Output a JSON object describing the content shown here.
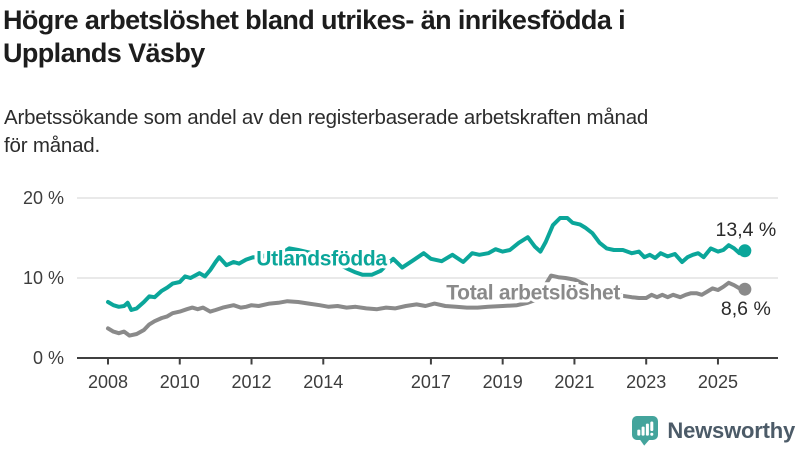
{
  "header": {
    "title_lines": [
      "Högre arbetslöshet bland utrikes- än inrikesfödda i",
      "Upplands Väsby"
    ],
    "subtitle_lines": [
      "Arbetssökande som andel av den registerbaserade arbetskraften månad",
      "för månad."
    ]
  },
  "branding": {
    "logo_text": "Newsworthy",
    "icon": "newsworthy-speech-bubble-bar-chart-icon",
    "icon_color": "#44a49c",
    "text_color": "#4c5b68"
  },
  "colors": {
    "title": "#1d1d1d",
    "subtitle": "#2c2c2c",
    "axis_line": "#404040",
    "axis_text": "#3d3d3d",
    "gridline": "#dcdcdc",
    "end_label": "#2a2a2a",
    "background": "#ffffff"
  },
  "chart_data": {
    "type": "line",
    "title": "Högre arbetslöshet bland utrikes- än inrikesfödda i Upplands Väsby",
    "subtitle": "Arbetssökande som andel av den registerbaserade arbetskraften månad för månad.",
    "xlabel": "",
    "ylabel": "",
    "grid": "horizontal",
    "legend_position": "inline-labels",
    "x_axis": {
      "range": [
        2008,
        2025.75
      ],
      "ticks": [
        2008,
        2010,
        2012,
        2014,
        2017,
        2019,
        2021,
        2023,
        2025
      ],
      "tick_labels": [
        "2008",
        "2010",
        "2012",
        "2014",
        "2017",
        "2019",
        "2021",
        "2023",
        "2025"
      ]
    },
    "y_axis": {
      "range": [
        0,
        21.6
      ],
      "ticks": [
        0,
        10,
        20
      ],
      "tick_labels": [
        "0 %",
        "10 %",
        "20 %"
      ]
    },
    "series": [
      {
        "name": "Utlandsfödda",
        "color": "#0ba69a",
        "end_value": 13.4,
        "end_label": "13,4 %",
        "end_label_side": "above",
        "label_pos": [
          2013.95,
          12.4
        ],
        "points": [
          [
            2008.0,
            7.0
          ],
          [
            2008.15,
            6.6
          ],
          [
            2008.3,
            6.4
          ],
          [
            2008.45,
            6.5
          ],
          [
            2008.55,
            6.9
          ],
          [
            2008.65,
            6.0
          ],
          [
            2008.8,
            6.2
          ],
          [
            2009.0,
            7.0
          ],
          [
            2009.15,
            7.7
          ],
          [
            2009.3,
            7.6
          ],
          [
            2009.5,
            8.4
          ],
          [
            2009.65,
            8.8
          ],
          [
            2009.8,
            9.3
          ],
          [
            2010.0,
            9.5
          ],
          [
            2010.15,
            10.2
          ],
          [
            2010.3,
            10.0
          ],
          [
            2010.55,
            10.6
          ],
          [
            2010.7,
            10.2
          ],
          [
            2010.85,
            11.0
          ],
          [
            2011.0,
            12.0
          ],
          [
            2011.1,
            12.6
          ],
          [
            2011.3,
            11.6
          ],
          [
            2011.5,
            12.0
          ],
          [
            2011.65,
            11.8
          ],
          [
            2011.85,
            12.3
          ],
          [
            2012.05,
            12.6
          ],
          [
            2012.25,
            12.5
          ],
          [
            2012.4,
            12.9
          ],
          [
            2012.55,
            12.5
          ],
          [
            2012.7,
            12.6
          ],
          [
            2012.85,
            13.1
          ],
          [
            2013.05,
            13.7
          ],
          [
            2013.3,
            13.5
          ],
          [
            2013.6,
            13.2
          ],
          [
            2013.9,
            12.8
          ],
          [
            2014.2,
            12.3
          ],
          [
            2014.45,
            11.7
          ],
          [
            2014.7,
            11.1
          ],
          [
            2014.9,
            10.7
          ],
          [
            2015.1,
            10.4
          ],
          [
            2015.35,
            10.4
          ],
          [
            2015.6,
            10.9
          ],
          [
            2015.8,
            11.8
          ],
          [
            2015.95,
            12.4
          ],
          [
            2016.2,
            11.3
          ],
          [
            2016.5,
            12.2
          ],
          [
            2016.8,
            13.1
          ],
          [
            2017.0,
            12.4
          ],
          [
            2017.3,
            12.1
          ],
          [
            2017.6,
            12.9
          ],
          [
            2017.9,
            12.0
          ],
          [
            2018.15,
            13.1
          ],
          [
            2018.35,
            12.9
          ],
          [
            2018.6,
            13.1
          ],
          [
            2018.8,
            13.6
          ],
          [
            2019.0,
            13.3
          ],
          [
            2019.2,
            13.5
          ],
          [
            2019.45,
            14.4
          ],
          [
            2019.7,
            15.1
          ],
          [
            2019.9,
            13.9
          ],
          [
            2020.05,
            13.3
          ],
          [
            2020.2,
            14.5
          ],
          [
            2020.4,
            16.6
          ],
          [
            2020.6,
            17.5
          ],
          [
            2020.8,
            17.5
          ],
          [
            2020.95,
            16.9
          ],
          [
            2021.15,
            16.7
          ],
          [
            2021.3,
            16.3
          ],
          [
            2021.5,
            15.6
          ],
          [
            2021.7,
            14.4
          ],
          [
            2021.9,
            13.7
          ],
          [
            2022.1,
            13.5
          ],
          [
            2022.35,
            13.5
          ],
          [
            2022.6,
            13.1
          ],
          [
            2022.8,
            13.3
          ],
          [
            2022.95,
            12.6
          ],
          [
            2023.1,
            12.9
          ],
          [
            2023.25,
            12.5
          ],
          [
            2023.4,
            13.1
          ],
          [
            2023.6,
            12.7
          ],
          [
            2023.8,
            13.0
          ],
          [
            2024.0,
            12.0
          ],
          [
            2024.15,
            12.6
          ],
          [
            2024.3,
            12.9
          ],
          [
            2024.45,
            13.1
          ],
          [
            2024.6,
            12.6
          ],
          [
            2024.8,
            13.7
          ],
          [
            2025.0,
            13.3
          ],
          [
            2025.15,
            13.5
          ],
          [
            2025.3,
            14.1
          ],
          [
            2025.45,
            13.7
          ],
          [
            2025.6,
            13.1
          ],
          [
            2025.75,
            13.4
          ]
        ]
      },
      {
        "name": "Total arbetslöshet",
        "color": "#8a8a8a",
        "end_value": 8.6,
        "end_label": "8,6 %",
        "end_label_side": "below",
        "label_pos": [
          2019.85,
          8.1
        ],
        "points": [
          [
            2008.0,
            3.7
          ],
          [
            2008.15,
            3.3
          ],
          [
            2008.3,
            3.1
          ],
          [
            2008.45,
            3.3
          ],
          [
            2008.6,
            2.8
          ],
          [
            2008.8,
            3.0
          ],
          [
            2009.0,
            3.5
          ],
          [
            2009.15,
            4.2
          ],
          [
            2009.3,
            4.6
          ],
          [
            2009.5,
            5.0
          ],
          [
            2009.65,
            5.2
          ],
          [
            2009.8,
            5.6
          ],
          [
            2010.0,
            5.8
          ],
          [
            2010.2,
            6.1
          ],
          [
            2010.35,
            6.3
          ],
          [
            2010.5,
            6.1
          ],
          [
            2010.65,
            6.3
          ],
          [
            2010.85,
            5.8
          ],
          [
            2011.0,
            6.0
          ],
          [
            2011.2,
            6.3
          ],
          [
            2011.5,
            6.6
          ],
          [
            2011.7,
            6.3
          ],
          [
            2011.85,
            6.4
          ],
          [
            2012.0,
            6.6
          ],
          [
            2012.2,
            6.5
          ],
          [
            2012.5,
            6.8
          ],
          [
            2012.75,
            6.9
          ],
          [
            2013.0,
            7.1
          ],
          [
            2013.3,
            7.0
          ],
          [
            2013.6,
            6.8
          ],
          [
            2013.9,
            6.6
          ],
          [
            2014.15,
            6.4
          ],
          [
            2014.4,
            6.5
          ],
          [
            2014.65,
            6.3
          ],
          [
            2014.9,
            6.4
          ],
          [
            2015.2,
            6.2
          ],
          [
            2015.5,
            6.1
          ],
          [
            2015.75,
            6.3
          ],
          [
            2016.0,
            6.2
          ],
          [
            2016.3,
            6.5
          ],
          [
            2016.6,
            6.7
          ],
          [
            2016.85,
            6.5
          ],
          [
            2017.1,
            6.8
          ],
          [
            2017.4,
            6.5
          ],
          [
            2017.7,
            6.4
          ],
          [
            2018.0,
            6.3
          ],
          [
            2018.3,
            6.3
          ],
          [
            2018.6,
            6.4
          ],
          [
            2019.0,
            6.5
          ],
          [
            2019.4,
            6.6
          ],
          [
            2019.7,
            6.9
          ],
          [
            2020.0,
            7.4
          ],
          [
            2020.2,
            9.2
          ],
          [
            2020.35,
            10.3
          ],
          [
            2020.55,
            10.1
          ],
          [
            2020.75,
            10.0
          ],
          [
            2021.0,
            9.8
          ],
          [
            2021.2,
            9.4
          ],
          [
            2021.4,
            8.9
          ],
          [
            2021.55,
            8.5
          ],
          [
            2021.8,
            8.2
          ],
          [
            2022.0,
            8.0
          ],
          [
            2022.3,
            7.8
          ],
          [
            2022.6,
            7.6
          ],
          [
            2022.8,
            7.5
          ],
          [
            2023.0,
            7.5
          ],
          [
            2023.15,
            7.9
          ],
          [
            2023.3,
            7.6
          ],
          [
            2023.45,
            7.9
          ],
          [
            2023.6,
            7.6
          ],
          [
            2023.75,
            7.9
          ],
          [
            2023.95,
            7.6
          ],
          [
            2024.1,
            7.9
          ],
          [
            2024.25,
            8.1
          ],
          [
            2024.4,
            8.1
          ],
          [
            2024.55,
            7.9
          ],
          [
            2024.7,
            8.3
          ],
          [
            2024.85,
            8.7
          ],
          [
            2025.0,
            8.5
          ],
          [
            2025.15,
            8.9
          ],
          [
            2025.3,
            9.4
          ],
          [
            2025.45,
            9.1
          ],
          [
            2025.6,
            8.7
          ],
          [
            2025.75,
            8.6
          ]
        ]
      }
    ]
  }
}
